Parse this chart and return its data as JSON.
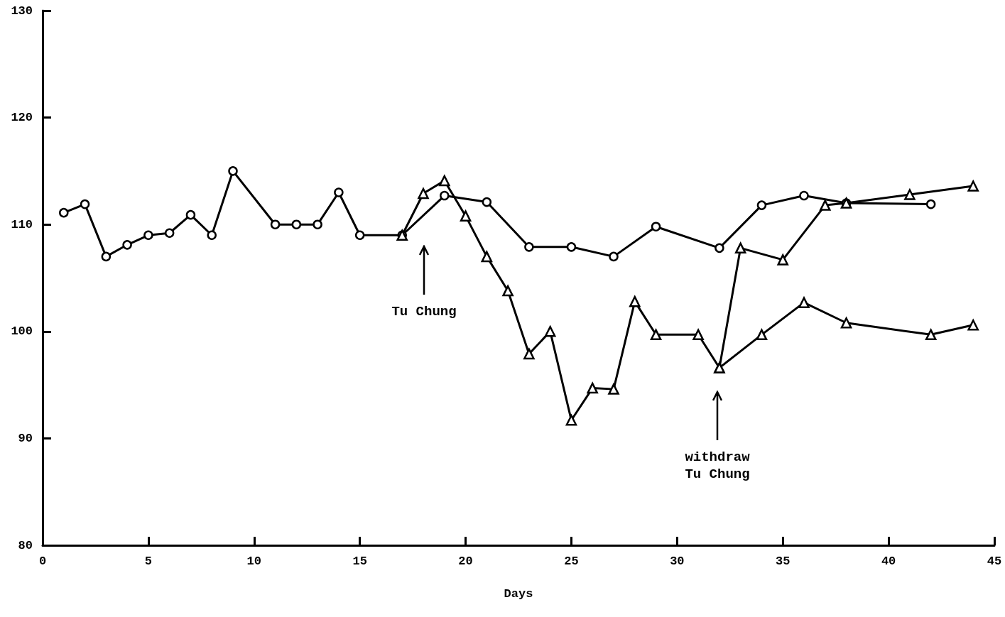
{
  "chart_data": {
    "type": "line",
    "xlabel": "Days",
    "xlim": [
      0,
      45
    ],
    "xticks": [
      0,
      5,
      10,
      15,
      20,
      25,
      30,
      35,
      40,
      45
    ],
    "ylim": [
      80,
      130
    ],
    "yticks": [
      80,
      90,
      100,
      110,
      120,
      130
    ],
    "grid": false,
    "line_style": "solid",
    "series": [
      {
        "color": "#000000",
        "marker": "circle",
        "x": [
          1,
          2,
          3,
          4,
          5,
          6,
          7,
          8,
          9,
          11,
          12,
          13,
          14,
          15,
          17,
          19,
          21,
          23,
          25,
          27,
          29,
          32,
          34,
          36,
          38,
          42
        ],
        "values": [
          111.1,
          111.9,
          107.0,
          108.1,
          109.0,
          109.2,
          110.9,
          109.0,
          115.0,
          110.0,
          110.0,
          110.0,
          113.0,
          109.0,
          109.0,
          112.7,
          112.1,
          107.9,
          107.9,
          107.0,
          109.8,
          107.8,
          111.8,
          112.7,
          112.0,
          111.9
        ]
      },
      {
        "color": "#000000",
        "marker": "triangle",
        "x": [
          17,
          18,
          19,
          20,
          21,
          22,
          23,
          24,
          25,
          26,
          27,
          28,
          29,
          31,
          32,
          34,
          36,
          38,
          42,
          44
        ],
        "values": [
          109.0,
          112.9,
          114.1,
          110.8,
          107.0,
          103.8,
          97.9,
          100.0,
          91.7,
          94.7,
          94.6,
          102.8,
          99.7,
          99.7,
          96.6,
          99.7,
          102.7,
          100.8,
          99.7,
          100.6
        ]
      },
      {
        "color": "#000000",
        "marker": "triangle",
        "x": [
          32,
          33,
          35,
          37,
          38,
          41,
          44
        ],
        "values": [
          96.6,
          107.8,
          106.7,
          111.8,
          112.0,
          112.8,
          113.6
        ]
      }
    ],
    "annotations": [
      "Tu Chung",
      "withdraw\nTu Chung"
    ]
  }
}
